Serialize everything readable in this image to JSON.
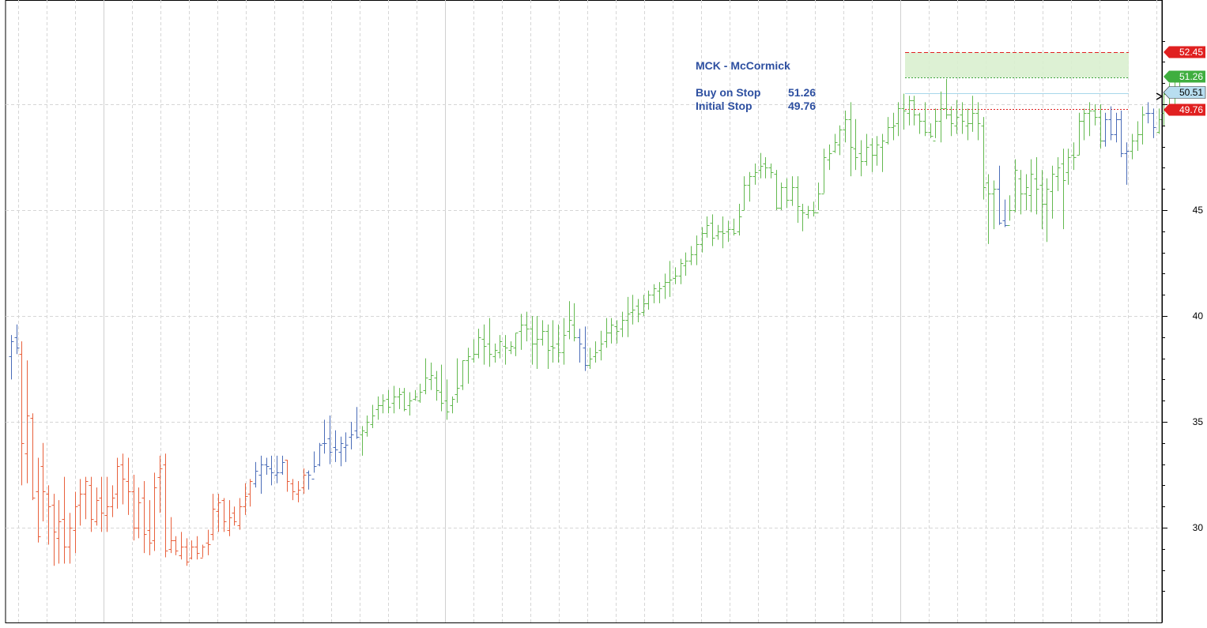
{
  "chart_data": {
    "type": "ohlc",
    "title": "MCK - McCormick",
    "annotations": {
      "buy_label": "Buy on Stop",
      "buy_value": "51.26",
      "stop_label": "Initial Stop",
      "stop_value": "49.76"
    },
    "y_ticks": [
      "30",
      "35",
      "40",
      "45"
    ],
    "ylim": [
      26.0,
      54.0
    ],
    "grid": true,
    "levels": [
      {
        "name": "target",
        "label": "52.45",
        "value": 52.45,
        "color": "#e02020",
        "style": "dashed"
      },
      {
        "name": "buy-stop",
        "label": "51.26",
        "value": 51.26,
        "color": "#3aa33a",
        "style": "dotted"
      },
      {
        "name": "last-price",
        "label": "50.51",
        "value": 50.51,
        "color": "#a7d7ea",
        "style": "solid"
      },
      {
        "name": "initial-stop",
        "label": "49.76",
        "value": 49.76,
        "color": "#e02020",
        "style": "dotted"
      }
    ],
    "colors": {
      "down": "#e8603c",
      "neutral": "#4a6cb8",
      "up": "#63b94f",
      "title": "#2d4fa0"
    },
    "bars": [
      [
        38.1,
        39.1,
        37.0,
        38.8,
        "b"
      ],
      [
        39.0,
        39.6,
        38.2,
        38.5,
        "b"
      ],
      [
        38.2,
        38.8,
        32.0,
        34.0,
        "r"
      ],
      [
        33.5,
        37.9,
        32.1,
        35.3,
        "r"
      ],
      [
        35.2,
        35.4,
        31.3,
        31.4,
        "r"
      ],
      [
        31.7,
        33.3,
        29.3,
        29.6,
        "r"
      ],
      [
        32.9,
        34.0,
        30.3,
        31.7,
        "r"
      ],
      [
        31.6,
        32.0,
        29.2,
        31.0,
        "r"
      ],
      [
        31.1,
        31.6,
        28.2,
        29.8,
        "r"
      ],
      [
        29.5,
        31.3,
        28.3,
        30.3,
        "r"
      ],
      [
        30.4,
        32.4,
        28.3,
        29.1,
        "r"
      ],
      [
        29.1,
        30.7,
        28.3,
        30.0,
        "r"
      ],
      [
        29.9,
        31.7,
        28.8,
        31.0,
        "r"
      ],
      [
        31.1,
        32.3,
        30.1,
        31.6,
        "r"
      ],
      [
        31.6,
        32.4,
        30.4,
        32.2,
        "r"
      ],
      [
        32.0,
        32.4,
        29.8,
        30.4,
        "r"
      ],
      [
        30.3,
        31.9,
        30.1,
        31.3,
        "r"
      ],
      [
        31.4,
        32.4,
        29.8,
        30.7,
        "r"
      ],
      [
        30.6,
        32.4,
        29.8,
        31.0,
        "r"
      ],
      [
        31.0,
        32.0,
        30.5,
        31.4,
        "r"
      ],
      [
        31.6,
        33.3,
        30.9,
        32.9,
        "r"
      ],
      [
        33.0,
        33.5,
        31.1,
        32.3,
        "r"
      ],
      [
        32.2,
        33.3,
        30.6,
        31.7,
        "r"
      ],
      [
        31.7,
        32.5,
        29.4,
        30.0,
        "r"
      ],
      [
        30.0,
        31.9,
        29.5,
        31.2,
        "r"
      ],
      [
        31.4,
        32.2,
        28.8,
        29.7,
        "r"
      ],
      [
        29.9,
        31.3,
        28.7,
        29.3,
        "r"
      ],
      [
        29.4,
        32.6,
        28.9,
        31.9,
        "r"
      ],
      [
        32.4,
        33.4,
        30.7,
        32.8,
        "r"
      ],
      [
        33.0,
        33.5,
        28.6,
        28.9,
        "r"
      ],
      [
        29.0,
        30.5,
        28.8,
        29.4,
        "r"
      ],
      [
        29.4,
        29.6,
        28.7,
        28.9,
        "r"
      ],
      [
        28.7,
        29.8,
        28.5,
        29.1,
        "r"
      ],
      [
        29.1,
        29.5,
        28.2,
        28.4,
        "r"
      ],
      [
        28.6,
        29.4,
        28.5,
        29.1,
        "r"
      ],
      [
        29.1,
        29.6,
        28.5,
        28.8,
        "r"
      ],
      [
        28.6,
        29.2,
        28.6,
        29.1,
        "r"
      ],
      [
        29.3,
        29.9,
        28.7,
        29.2,
        "r"
      ],
      [
        29.7,
        31.6,
        29.4,
        30.9,
        "r"
      ],
      [
        30.8,
        31.6,
        29.8,
        31.2,
        "r"
      ],
      [
        31.3,
        31.4,
        29.8,
        30.3,
        "r"
      ],
      [
        29.9,
        31.3,
        29.6,
        30.5,
        "r"
      ],
      [
        30.7,
        31.0,
        30.1,
        30.3,
        "r"
      ],
      [
        30.1,
        31.4,
        29.9,
        31.0,
        "r"
      ],
      [
        31.0,
        32.1,
        30.6,
        31.5,
        "r"
      ],
      [
        31.6,
        32.3,
        31.0,
        32.2,
        "r"
      ],
      [
        32.1,
        33.1,
        31.9,
        32.7,
        "b"
      ],
      [
        32.5,
        33.4,
        31.6,
        33.0,
        "b"
      ],
      [
        33.0,
        33.3,
        32.5,
        32.9,
        "b"
      ],
      [
        32.8,
        33.4,
        32.0,
        32.6,
        "b"
      ],
      [
        32.5,
        33.4,
        32.1,
        32.6,
        "b"
      ],
      [
        32.6,
        33.4,
        32.5,
        33.1,
        "b"
      ],
      [
        33.2,
        33.2,
        31.7,
        32.2,
        "r"
      ],
      [
        32.1,
        32.3,
        31.3,
        31.7,
        "r"
      ],
      [
        31.6,
        32.2,
        31.2,
        31.8,
        "r"
      ],
      [
        31.9,
        32.8,
        31.6,
        32.5,
        "r"
      ],
      [
        32.6,
        32.7,
        31.8,
        32.5,
        "b"
      ],
      [
        32.3,
        33.6,
        32.6,
        32.9,
        "b"
      ],
      [
        33.0,
        34.0,
        32.9,
        33.9,
        "b"
      ],
      [
        34.0,
        35.1,
        33.5,
        34.0,
        "b"
      ],
      [
        34.2,
        35.3,
        33.0,
        33.6,
        "b"
      ],
      [
        33.8,
        34.6,
        33.1,
        33.7,
        "b"
      ],
      [
        33.6,
        34.3,
        32.9,
        34.0,
        "b"
      ],
      [
        33.8,
        34.5,
        33.1,
        33.9,
        "b"
      ],
      [
        34.3,
        35.0,
        33.7,
        34.4,
        "b"
      ],
      [
        34.6,
        35.7,
        34.2,
        34.3,
        "b"
      ],
      [
        34.4,
        34.8,
        33.4,
        34.6,
        "g"
      ],
      [
        34.5,
        35.3,
        34.3,
        35.0,
        "g"
      ],
      [
        34.9,
        35.8,
        34.7,
        35.3,
        "g"
      ],
      [
        35.6,
        36.2,
        35.1,
        35.8,
        "g"
      ],
      [
        35.8,
        36.3,
        35.4,
        36.0,
        "g"
      ],
      [
        36.1,
        36.5,
        35.4,
        35.7,
        "g"
      ],
      [
        35.9,
        36.7,
        35.4,
        36.2,
        "g"
      ],
      [
        36.2,
        36.6,
        35.6,
        36.3,
        "g"
      ],
      [
        36.4,
        36.6,
        35.5,
        35.6,
        "g"
      ],
      [
        35.8,
        36.4,
        35.3,
        36.0,
        "g"
      ],
      [
        36.1,
        36.5,
        36.0,
        36.2,
        "g"
      ],
      [
        36.0,
        36.8,
        35.9,
        36.4,
        "g"
      ],
      [
        36.5,
        38.0,
        36.3,
        37.1,
        "g"
      ],
      [
        37.0,
        37.8,
        36.5,
        37.2,
        "g"
      ],
      [
        37.1,
        37.4,
        36.0,
        36.5,
        "g"
      ],
      [
        36.4,
        37.7,
        35.5,
        35.9,
        "g"
      ],
      [
        36.0,
        37.0,
        35.1,
        35.5,
        "g"
      ],
      [
        35.8,
        36.2,
        35.4,
        36.1,
        "g"
      ],
      [
        36.3,
        38.0,
        35.9,
        36.6,
        "g"
      ],
      [
        36.7,
        37.9,
        36.5,
        37.9,
        "g"
      ],
      [
        37.9,
        38.5,
        36.8,
        38.1,
        "g"
      ],
      [
        38.0,
        38.9,
        37.8,
        38.2,
        "g"
      ],
      [
        38.2,
        39.4,
        38.0,
        39.0,
        "g"
      ],
      [
        38.9,
        39.6,
        37.7,
        38.6,
        "g"
      ],
      [
        38.7,
        39.9,
        37.6,
        38.2,
        "g"
      ],
      [
        38.1,
        38.7,
        37.8,
        38.4,
        "g"
      ],
      [
        38.3,
        39.1,
        38.0,
        38.8,
        "g"
      ],
      [
        38.6,
        39.1,
        37.7,
        38.5,
        "g"
      ],
      [
        38.4,
        38.8,
        38.2,
        38.6,
        "g"
      ],
      [
        38.5,
        39.2,
        38.1,
        39.2,
        "g"
      ],
      [
        39.3,
        40.1,
        38.4,
        39.6,
        "g"
      ],
      [
        39.6,
        40.2,
        38.8,
        39.4,
        "g"
      ],
      [
        39.4,
        40.0,
        37.7,
        38.7,
        "g"
      ],
      [
        38.7,
        40.0,
        37.5,
        38.9,
        "g"
      ],
      [
        38.9,
        39.8,
        38.6,
        39.3,
        "g"
      ],
      [
        39.3,
        39.6,
        37.5,
        38.4,
        "g"
      ],
      [
        38.6,
        39.8,
        37.8,
        38.5,
        "g"
      ],
      [
        38.7,
        39.6,
        37.8,
        38.3,
        "g"
      ],
      [
        38.3,
        39.9,
        37.7,
        39.1,
        "g"
      ],
      [
        39.3,
        40.7,
        38.9,
        39.8,
        "g"
      ],
      [
        39.6,
        40.6,
        38.8,
        39.0,
        "g"
      ],
      [
        39.0,
        39.4,
        37.8,
        38.7,
        "b"
      ],
      [
        38.5,
        39.5,
        37.4,
        37.7,
        "b"
      ],
      [
        37.7,
        38.5,
        37.5,
        38.0,
        "g"
      ],
      [
        38.1,
        38.8,
        37.8,
        38.3,
        "g"
      ],
      [
        38.4,
        39.3,
        37.9,
        38.7,
        "g"
      ],
      [
        38.8,
        39.9,
        38.5,
        39.2,
        "g"
      ],
      [
        39.2,
        39.9,
        38.7,
        39.6,
        "g"
      ],
      [
        39.5,
        39.8,
        38.7,
        39.3,
        "g"
      ],
      [
        39.4,
        40.2,
        39.0,
        39.8,
        "g"
      ],
      [
        39.8,
        40.9,
        39.0,
        40.1,
        "g"
      ],
      [
        40.2,
        41.0,
        39.6,
        40.3,
        "g"
      ],
      [
        40.5,
        40.8,
        39.7,
        40.1,
        "g"
      ],
      [
        40.2,
        41.0,
        40.0,
        40.6,
        "g"
      ],
      [
        40.6,
        41.2,
        40.3,
        41.0,
        "g"
      ],
      [
        41.0,
        41.5,
        40.6,
        41.3,
        "g"
      ],
      [
        41.2,
        41.6,
        40.6,
        41.3,
        "g"
      ],
      [
        41.4,
        42.0,
        40.8,
        41.6,
        "g"
      ],
      [
        41.6,
        42.6,
        40.9,
        41.7,
        "g"
      ],
      [
        41.8,
        42.3,
        41.5,
        41.9,
        "g"
      ],
      [
        41.9,
        42.7,
        41.5,
        42.5,
        "g"
      ],
      [
        42.4,
        43.0,
        41.9,
        42.6,
        "g"
      ],
      [
        42.6,
        43.3,
        42.4,
        42.9,
        "g"
      ],
      [
        42.9,
        43.8,
        42.4,
        43.4,
        "g"
      ],
      [
        43.4,
        44.2,
        43.0,
        43.9,
        "g"
      ],
      [
        43.9,
        44.7,
        43.7,
        44.3,
        "g"
      ],
      [
        44.4,
        44.8,
        43.3,
        43.7,
        "g"
      ],
      [
        43.8,
        44.3,
        43.6,
        44.0,
        "g"
      ],
      [
        44.0,
        44.7,
        43.2,
        43.9,
        "g"
      ],
      [
        44.0,
        44.5,
        43.5,
        44.1,
        "g"
      ],
      [
        44.1,
        44.6,
        43.8,
        43.9,
        "g"
      ],
      [
        44.0,
        45.3,
        43.8,
        44.7,
        "g"
      ],
      [
        45.0,
        46.6,
        45.0,
        46.2,
        "g"
      ],
      [
        46.2,
        46.8,
        45.4,
        46.6,
        "g"
      ],
      [
        46.6,
        47.2,
        46.2,
        46.8,
        "g"
      ],
      [
        46.9,
        47.7,
        46.5,
        47.1,
        "g"
      ],
      [
        47.2,
        47.5,
        46.5,
        47.0,
        "g"
      ],
      [
        47.0,
        47.2,
        46.5,
        46.8,
        "g"
      ],
      [
        46.7,
        46.9,
        45.0,
        45.1,
        "g"
      ],
      [
        45.1,
        46.3,
        45.0,
        46.1,
        "g"
      ],
      [
        46.1,
        46.5,
        45.1,
        45.5,
        "g"
      ],
      [
        45.5,
        46.6,
        45.2,
        46.1,
        "g"
      ],
      [
        46.1,
        46.6,
        44.4,
        45.2,
        "g"
      ],
      [
        45.0,
        45.3,
        44.0,
        44.9,
        "g"
      ],
      [
        44.8,
        45.2,
        44.6,
        45.0,
        "g"
      ],
      [
        45.0,
        45.4,
        44.7,
        44.9,
        "g"
      ],
      [
        44.9,
        46.3,
        45.0,
        45.8,
        "g"
      ],
      [
        45.8,
        47.9,
        45.8,
        47.5,
        "g"
      ],
      [
        47.4,
        48.1,
        46.9,
        47.7,
        "g"
      ],
      [
        47.8,
        48.6,
        47.7,
        48.2,
        "g"
      ],
      [
        48.1,
        49.0,
        47.6,
        48.8,
        "g"
      ],
      [
        48.8,
        49.7,
        48.2,
        49.3,
        "g"
      ],
      [
        49.3,
        50.1,
        46.6,
        48.0,
        "g"
      ],
      [
        47.9,
        49.3,
        46.9,
        47.5,
        "g"
      ],
      [
        47.7,
        48.3,
        46.6,
        47.3,
        "g"
      ],
      [
        47.3,
        48.6,
        47.1,
        48.0,
        "g"
      ],
      [
        48.1,
        48.4,
        46.8,
        47.6,
        "g"
      ],
      [
        47.6,
        48.5,
        47.1,
        48.1,
        "g"
      ],
      [
        48.0,
        48.6,
        46.8,
        48.3,
        "g"
      ],
      [
        48.2,
        49.4,
        48.1,
        48.9,
        "g"
      ],
      [
        48.9,
        49.6,
        48.3,
        49.0,
        "g"
      ],
      [
        49.1,
        50.1,
        48.5,
        49.8,
        "g"
      ],
      [
        49.8,
        50.5,
        48.8,
        49.7,
        "g"
      ],
      [
        49.6,
        50.4,
        49.0,
        50.2,
        "g"
      ],
      [
        50.2,
        50.4,
        49.0,
        49.5,
        "g"
      ],
      [
        49.5,
        49.6,
        48.6,
        49.2,
        "g"
      ],
      [
        49.2,
        50.1,
        48.5,
        48.7,
        "g"
      ],
      [
        48.7,
        49.1,
        48.4,
        48.5,
        "g"
      ],
      [
        48.3,
        49.8,
        48.4,
        49.2,
        "g"
      ],
      [
        49.2,
        50.6,
        48.2,
        49.8,
        "g"
      ],
      [
        49.8,
        51.2,
        49.3,
        49.5,
        "g"
      ],
      [
        49.5,
        49.9,
        48.5,
        49.1,
        "g"
      ],
      [
        49.0,
        50.2,
        48.6,
        49.4,
        "g"
      ],
      [
        49.5,
        50.1,
        48.6,
        49.2,
        "g"
      ],
      [
        49.0,
        49.8,
        48.3,
        49.1,
        "g"
      ],
      [
        49.1,
        50.4,
        48.7,
        49.6,
        "g"
      ],
      [
        49.6,
        50.1,
        48.3,
        49.1,
        "g"
      ],
      [
        49.0,
        49.4,
        45.5,
        46.1,
        "g"
      ],
      [
        46.3,
        46.7,
        43.4,
        45.8,
        "g"
      ],
      [
        45.8,
        46.4,
        44.1,
        46.0,
        "g"
      ],
      [
        46.0,
        47.1,
        44.3,
        44.4,
        "b"
      ],
      [
        44.5,
        45.5,
        44.2,
        44.3,
        "b"
      ],
      [
        44.3,
        45.7,
        44.5,
        45.0,
        "g"
      ],
      [
        45.0,
        47.4,
        44.9,
        46.9,
        "g"
      ],
      [
        46.5,
        46.9,
        44.8,
        45.8,
        "g"
      ],
      [
        45.8,
        46.7,
        45.0,
        46.1,
        "g"
      ],
      [
        45.7,
        47.4,
        44.9,
        46.7,
        "g"
      ],
      [
        46.5,
        47.5,
        44.8,
        46.0,
        "g"
      ],
      [
        46.2,
        46.9,
        44.1,
        45.3,
        "g"
      ],
      [
        45.3,
        46.5,
        43.5,
        46.0,
        "g"
      ],
      [
        45.9,
        47.1,
        44.6,
        46.7,
        "g"
      ],
      [
        46.6,
        47.5,
        45.9,
        47.0,
        "g"
      ],
      [
        47.2,
        47.9,
        44.1,
        46.4,
        "g"
      ],
      [
        46.8,
        47.9,
        46.2,
        47.5,
        "g"
      ],
      [
        47.6,
        48.2,
        46.9,
        47.5,
        "g"
      ],
      [
        47.6,
        49.6,
        47.6,
        49.2,
        "g"
      ],
      [
        49.2,
        49.8,
        48.3,
        49.6,
        "g"
      ],
      [
        49.6,
        50.1,
        48.5,
        49.7,
        "g"
      ],
      [
        49.7,
        50.0,
        49.0,
        49.4,
        "g"
      ],
      [
        49.4,
        50.0,
        47.9,
        48.3,
        "g"
      ],
      [
        48.3,
        49.6,
        48.0,
        49.3,
        "b"
      ],
      [
        49.3,
        49.9,
        48.3,
        48.6,
        "b"
      ],
      [
        48.6,
        49.6,
        48.2,
        49.3,
        "b"
      ],
      [
        49.3,
        49.7,
        47.5,
        47.7,
        "b"
      ],
      [
        47.7,
        48.2,
        46.2,
        47.8,
        "b"
      ],
      [
        47.8,
        48.6,
        47.4,
        48.3,
        "g"
      ],
      [
        48.3,
        49.2,
        47.8,
        48.6,
        "g"
      ],
      [
        48.6,
        49.9,
        48.1,
        49.5,
        "g"
      ],
      [
        49.6,
        50.1,
        49.1,
        49.6,
        "b"
      ],
      [
        49.6,
        49.8,
        48.4,
        48.9,
        "b"
      ],
      [
        48.7,
        49.8,
        48.6,
        49.3,
        "g"
      ],
      [
        49.6,
        50.6,
        49.0,
        50.5,
        "g"
      ],
      [
        50.6,
        51.0,
        49.8,
        50.4,
        "g"
      ],
      [
        50.4,
        51.1,
        50.0,
        50.5,
        "g"
      ],
      [
        50.5,
        51.3,
        50.4,
        50.5,
        "g"
      ]
    ]
  }
}
